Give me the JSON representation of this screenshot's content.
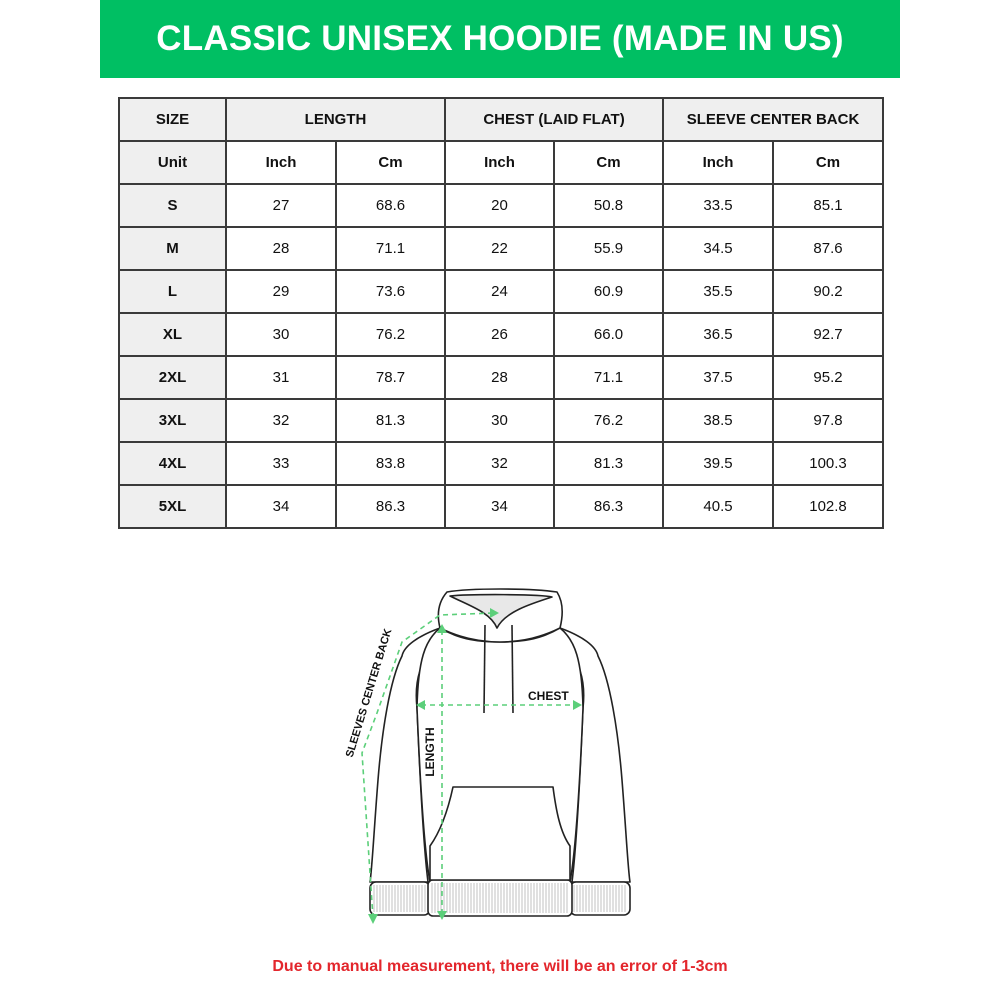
{
  "title": "CLASSIC UNISEX HOODIE (MADE IN US)",
  "table": {
    "group_headers": [
      "SIZE",
      "LENGTH",
      "CHEST (LAID FLAT)",
      "SLEEVE CENTER BACK"
    ],
    "unit_row": [
      "Unit",
      "Inch",
      "Cm",
      "Inch",
      "Cm",
      "Inch",
      "Cm"
    ],
    "rows": [
      [
        "S",
        "27",
        "68.6",
        "20",
        "50.8",
        "33.5",
        "85.1"
      ],
      [
        "M",
        "28",
        "71.1",
        "22",
        "55.9",
        "34.5",
        "87.6"
      ],
      [
        "L",
        "29",
        "73.6",
        "24",
        "60.9",
        "35.5",
        "90.2"
      ],
      [
        "XL",
        "30",
        "76.2",
        "26",
        "66.0",
        "36.5",
        "92.7"
      ],
      [
        "2XL",
        "31",
        "78.7",
        "28",
        "71.1",
        "37.5",
        "95.2"
      ],
      [
        "3XL",
        "32",
        "81.3",
        "30",
        "76.2",
        "38.5",
        "97.8"
      ],
      [
        "4XL",
        "33",
        "83.8",
        "32",
        "81.3",
        "39.5",
        "100.3"
      ],
      [
        "5XL",
        "34",
        "86.3",
        "34",
        "86.3",
        "40.5",
        "102.8"
      ]
    ]
  },
  "diagram": {
    "labels": {
      "chest": "CHEST",
      "length": "LENGTH",
      "sleeves": "SLEEVES CENTER BACK"
    },
    "arrow_color": "#5ccf7a"
  },
  "note": "Due to manual measurement, there will be an error of 1-3cm",
  "colors": {
    "banner": "#00bf63",
    "note": "#e3262c",
    "header_bg": "#efefef"
  }
}
